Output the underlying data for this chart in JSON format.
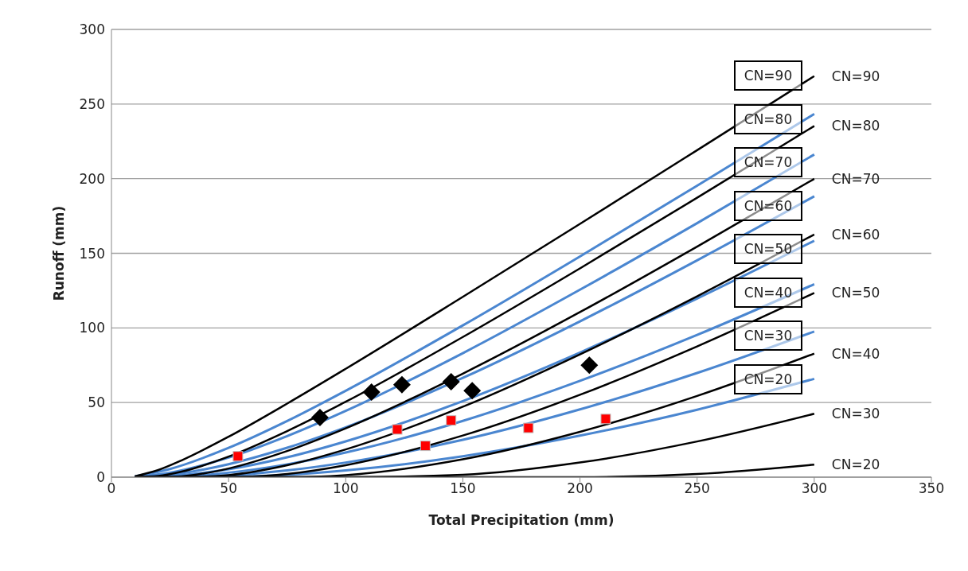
{
  "chart_data": {
    "type": "line",
    "xlabel": "Total Precipitation (mm)",
    "ylabel": "Runoff (mm)",
    "xlim": [
      0,
      350
    ],
    "xticks": [
      0,
      50,
      100,
      150,
      200,
      250,
      300,
      350
    ],
    "ylim": [
      0,
      300
    ],
    "yticks": [
      0,
      50,
      100,
      150,
      200,
      250,
      300
    ],
    "grid": "y",
    "line_style": "solid",
    "annotations": [
      "CN=90",
      "CN=80",
      "CN=70",
      "CN=60",
      "CN=50",
      "CN=40",
      "CN=30",
      "CN=20"
    ],
    "series": [
      {
        "color": "#4a86d0",
        "x": [
          10,
          25,
          50,
          75,
          100,
          150,
          200,
          250,
          300
        ],
        "values": [
          0.6,
          5.5,
          19.6,
          37.6,
          57.9,
          101.7,
          147.9,
          195.3,
          243.4
        ]
      },
      {
        "color": "#4a86d0",
        "x": [
          10,
          25,
          50,
          75,
          100,
          150,
          200,
          250,
          300
        ],
        "values": [
          0.2,
          3,
          13.1,
          27.5,
          44.4,
          83.1,
          125.6,
          170.2,
          216.2
        ]
      },
      {
        "color": "#4a86d0",
        "x": [
          10,
          25,
          50,
          75,
          100,
          150,
          200,
          250,
          300
        ],
        "values": [
          0,
          1.6,
          8.7,
          19.7,
          33.4,
          66.5,
          104.4,
          145.3,
          188.2
        ]
      },
      {
        "color": "#4a86d0",
        "x": [
          10,
          25,
          50,
          75,
          100,
          150,
          200,
          250,
          300
        ],
        "values": [
          0,
          0.7,
          5.3,
          13.3,
          24,
          51,
          83.5,
          119.7,
          158.4
        ]
      },
      {
        "color": "#4a86d0",
        "x": [
          10,
          25,
          50,
          75,
          100,
          150,
          200,
          250,
          300
        ],
        "values": [
          0,
          0.2,
          3,
          8.6,
          16.5,
          37.7,
          64.5,
          95.3,
          129.3
        ]
      },
      {
        "color": "#4a86d0",
        "x": [
          10,
          25,
          50,
          75,
          100,
          150,
          200,
          250,
          300
        ],
        "values": [
          0,
          0,
          1.2,
          4.5,
          9.8,
          25,
          45.4,
          69.8,
          97.6
        ]
      },
      {
        "color": "#4a86d0",
        "x": [
          10,
          25,
          50,
          75,
          100,
          150,
          200,
          250,
          300
        ],
        "values": [
          0,
          0,
          0.2,
          1.6,
          4.5,
          14,
          27.8,
          45.2,
          65.9
        ]
      },
      {
        "name": "CN=90",
        "color": "#000000",
        "x": [
          10,
          20,
          30,
          50,
          75,
          100,
          150,
          200,
          250,
          300
        ],
        "values": [
          0.6,
          4.8,
          11.3,
          27.1,
          49.3,
          72.6,
          120.8,
          169.7,
          219.1,
          268.7
        ]
      },
      {
        "name": "CN=80",
        "color": "#000000",
        "x": [
          10,
          20,
          30,
          50,
          75,
          100,
          150,
          200,
          250,
          300
        ],
        "values": [
          0,
          0.8,
          3.7,
          13.8,
          30.9,
          50.5,
          93.9,
          139.9,
          187.2,
          235.3
        ]
      },
      {
        "name": "CN=70",
        "color": "#000000",
        "x": [
          10,
          20,
          30,
          50,
          75,
          100,
          150,
          200,
          250,
          300
        ],
        "values": [
          0,
          0,
          0.6,
          5.8,
          17.5,
          32.7,
          69.4,
          110.6,
          154.5,
          199.9
        ]
      },
      {
        "name": "CN=60",
        "color": "#000000",
        "x": [
          10,
          30,
          50,
          75,
          100,
          150,
          200,
          250,
          300
        ],
        "values": [
          0,
          0,
          1.4,
          8,
          18.6,
          47.2,
          82.3,
          121.2,
          162.6
        ]
      },
      {
        "name": "CN=50",
        "color": "#000000",
        "x": [
          10,
          50,
          75,
          100,
          150,
          200,
          250,
          300
        ],
        "values": [
          0,
          0,
          2.1,
          8,
          27.9,
          55.2,
          87.6,
          123.4
        ]
      },
      {
        "name": "CN=40",
        "color": "#000000",
        "x": [
          10,
          75,
          100,
          150,
          200,
          250,
          300
        ],
        "values": [
          0,
          0,
          1.4,
          12,
          30.4,
          54.4,
          82.8
        ]
      },
      {
        "name": "CN=30",
        "color": "#000000",
        "x": [
          10,
          100,
          150,
          200,
          250,
          300
        ],
        "values": [
          0,
          0,
          1.6,
          9.8,
          23.9,
          42.5
        ]
      },
      {
        "name": "CN=20",
        "color": "#000000",
        "x": [
          10,
          200,
          250,
          300
        ],
        "values": [
          0,
          0,
          2.1,
          8.4
        ]
      },
      {
        "type": "scatter",
        "marker": "diamond",
        "color": "#000000",
        "x": [
          89,
          111,
          124,
          145,
          154,
          204
        ],
        "values": [
          40,
          57,
          62,
          64,
          58,
          75
        ]
      },
      {
        "type": "scatter",
        "marker": "square",
        "color": "#ff0000",
        "x": [
          54,
          122,
          134,
          145,
          178,
          211
        ],
        "values": [
          14,
          32,
          21,
          38,
          33,
          39
        ]
      }
    ]
  }
}
